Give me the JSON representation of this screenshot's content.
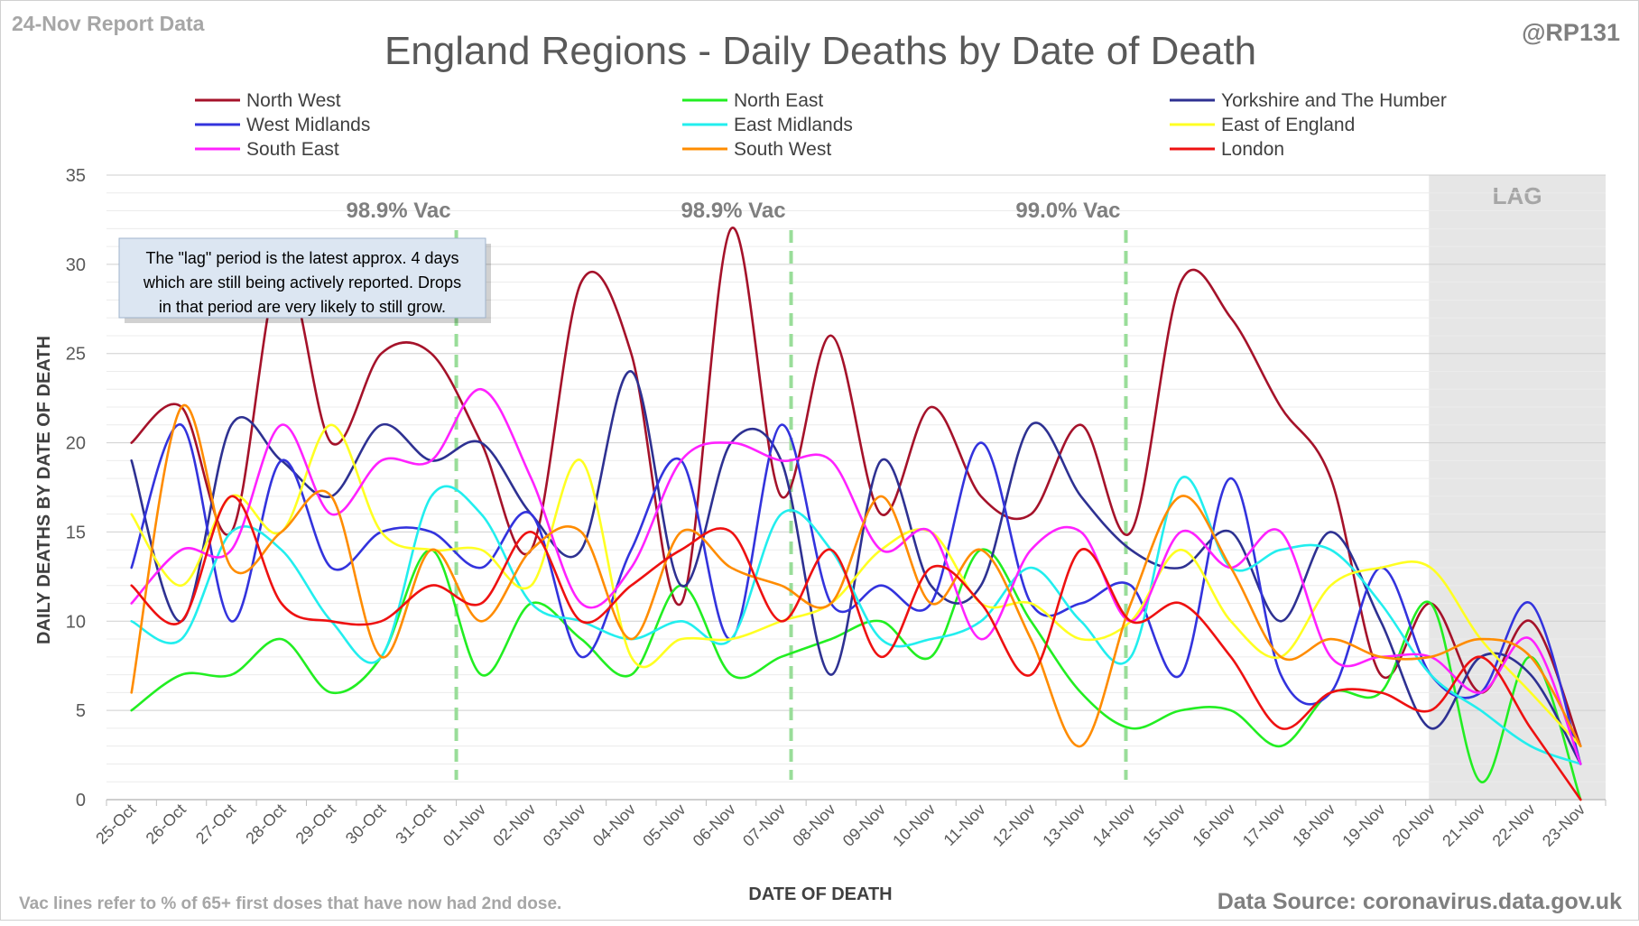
{
  "header": {
    "report_label": "24-Nov Report Data",
    "handle": "@RP131"
  },
  "footer": {
    "vac_note": "Vac lines refer to % of 65+ first doses that have now had 2nd dose.",
    "source": "Data Source: coronavirus.data.gov.uk"
  },
  "annotation": {
    "lines": [
      "The \"lag\" period is the latest approx. 4 days",
      "which are still being actively reported.  Drops",
      "in that period are very likely to still grow."
    ]
  },
  "colors": {
    "lag_fill": "#e6e6e6",
    "vac_line": "#99dd99",
    "grid": "#d9d9d9",
    "text": "#595959"
  },
  "chart_data": {
    "type": "line",
    "title": "England Regions - Daily Deaths by Date of Death",
    "xlabel": "DATE OF DEATH",
    "ylabel": "DAILY DEATHS BY DATE OF DEATH",
    "ylim": [
      0,
      35
    ],
    "yticks": [
      0,
      5,
      10,
      15,
      20,
      25,
      30,
      35
    ],
    "grid": true,
    "legend_position": "top",
    "categories": [
      "25-Oct",
      "26-Oct",
      "27-Oct",
      "28-Oct",
      "29-Oct",
      "30-Oct",
      "31-Oct",
      "01-Nov",
      "02-Nov",
      "03-Nov",
      "04-Nov",
      "05-Nov",
      "06-Nov",
      "07-Nov",
      "08-Nov",
      "09-Nov",
      "10-Nov",
      "11-Nov",
      "12-Nov",
      "13-Nov",
      "14-Nov",
      "15-Nov",
      "16-Nov",
      "17-Nov",
      "18-Nov",
      "19-Nov",
      "20-Nov",
      "21-Nov",
      "22-Nov",
      "23-Nov"
    ],
    "lag": {
      "label": "LAG",
      "start": "20-Nov",
      "end": "23-Nov"
    },
    "vac_lines": [
      {
        "label": "98.9% Vac",
        "position": 6.5
      },
      {
        "label": "98.9% Vac",
        "position": 13.2
      },
      {
        "label": "99.0% Vac",
        "position": 19.9
      }
    ],
    "series": [
      {
        "name": "North West",
        "color": "#a5122a",
        "values": [
          20,
          22,
          15,
          30,
          20,
          25,
          25,
          20,
          14,
          29,
          25,
          11,
          32,
          17,
          26,
          16,
          22,
          17,
          16,
          21,
          15,
          29,
          27,
          22,
          18,
          7,
          11,
          6,
          10,
          3
        ]
      },
      {
        "name": "North East",
        "color": "#22ee22",
        "values": [
          5,
          7,
          7,
          9,
          6,
          8,
          14,
          7,
          11,
          9,
          7,
          12,
          7,
          8,
          9,
          10,
          8,
          14,
          10,
          6,
          4,
          5,
          5,
          3,
          6,
          6,
          11,
          1,
          8,
          0
        ]
      },
      {
        "name": "Yorkshire and The Humber",
        "color": "#2e3192",
        "values": [
          19,
          10,
          21,
          19,
          17,
          21,
          19,
          20,
          16,
          14,
          24,
          12,
          20,
          19,
          7,
          19,
          12,
          12,
          21,
          17,
          14,
          13,
          15,
          10,
          15,
          10,
          4,
          8,
          7,
          2
        ]
      },
      {
        "name": "West Midlands",
        "color": "#3333dd",
        "values": [
          13,
          21,
          10,
          19,
          13,
          15,
          15,
          13,
          16,
          8,
          14,
          19,
          9,
          21,
          11,
          12,
          11,
          20,
          11,
          11,
          12,
          7,
          18,
          7,
          6,
          13,
          7,
          6,
          11,
          2
        ]
      },
      {
        "name": "East Midlands",
        "color": "#22eeee",
        "values": [
          10,
          9,
          15,
          14,
          10,
          8,
          17,
          16,
          11,
          10,
          9,
          10,
          9,
          16,
          14,
          9,
          9,
          10,
          13,
          10,
          8,
          18,
          13,
          14,
          14,
          11,
          7,
          5,
          3,
          2
        ]
      },
      {
        "name": "East of England",
        "color": "#ffff22",
        "values": [
          16,
          12,
          17,
          15,
          21,
          15,
          14,
          14,
          12,
          19,
          8,
          9,
          9,
          10,
          11,
          14,
          15,
          11,
          11,
          9,
          10,
          14,
          10,
          8,
          12,
          13,
          13,
          9,
          6,
          3
        ]
      },
      {
        "name": "South East",
        "color": "#ff22ff",
        "values": [
          11,
          14,
          14,
          21,
          16,
          19,
          19,
          23,
          18,
          11,
          13,
          19,
          20,
          19,
          19,
          14,
          15,
          9,
          14,
          15,
          10,
          15,
          13,
          15,
          8,
          8,
          8,
          6,
          9,
          2
        ]
      },
      {
        "name": "South West",
        "color": "#ff8c00",
        "values": [
          6,
          22,
          13,
          15,
          17,
          8,
          14,
          10,
          14,
          15,
          9,
          15,
          13,
          12,
          11,
          17,
          11,
          14,
          9,
          3,
          11,
          17,
          13,
          8,
          9,
          8,
          8,
          9,
          8,
          3
        ]
      },
      {
        "name": "London",
        "color": "#ee1111",
        "values": [
          12,
          10,
          17,
          11,
          10,
          10,
          12,
          11,
          15,
          10,
          12,
          14,
          15,
          10,
          14,
          8,
          13,
          11,
          7,
          14,
          10,
          11,
          8,
          4,
          6,
          6,
          5,
          8,
          4,
          0
        ]
      }
    ]
  }
}
